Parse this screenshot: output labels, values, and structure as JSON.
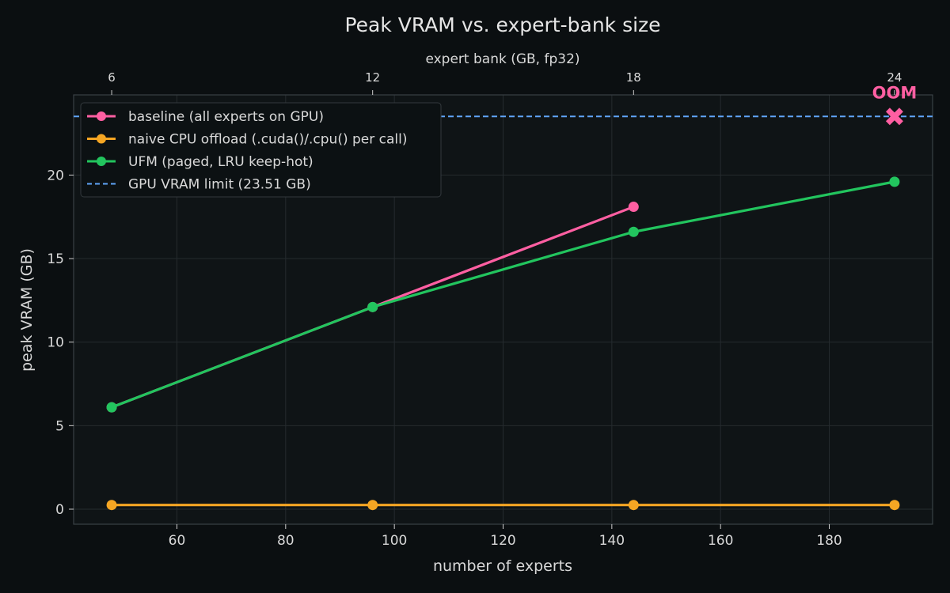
{
  "chart_data": {
    "type": "line",
    "title": "Peak VRAM vs. expert-bank size",
    "xlabel": "number of experts",
    "ylabel": "peak VRAM (GB)",
    "top_xlabel": "expert bank (GB, fp32)",
    "xlim": [
      41,
      199
    ],
    "ylim": [
      -0.9,
      24.8
    ],
    "xticks": [
      60,
      80,
      100,
      120,
      140,
      160,
      180
    ],
    "yticks": [
      0,
      5,
      10,
      15,
      20
    ],
    "top_ticks": [
      {
        "x": 48,
        "label": "6"
      },
      {
        "x": 96,
        "label": "12"
      },
      {
        "x": 144,
        "label": "18"
      },
      {
        "x": 192,
        "label": "24"
      }
    ],
    "grid": true,
    "legend_position": "top-left",
    "series": [
      {
        "name": "baseline (all experts on GPU)",
        "color": "#ff5fa2",
        "x": [
          48,
          96,
          144
        ],
        "y": [
          6.1,
          12.1,
          18.1
        ]
      },
      {
        "name": "naive CPU offload (.cuda()/.cpu() per call)",
        "color": "#f5a623",
        "x": [
          48,
          96,
          144,
          192
        ],
        "y": [
          0.25,
          0.25,
          0.25,
          0.25
        ]
      },
      {
        "name": "UFM (paged, LRU keep-hot)",
        "color": "#22c55e",
        "x": [
          48,
          96,
          144,
          192
        ],
        "y": [
          6.1,
          12.1,
          16.6,
          19.6
        ]
      }
    ],
    "hlines": [
      {
        "name": "GPU VRAM limit (23.51 GB)",
        "y": 23.51,
        "color": "#60a5fa",
        "style": "dashed"
      }
    ],
    "annotations": [
      {
        "text": "OOM",
        "x": 192,
        "y": 23.51,
        "marker": "X",
        "color": "#ff5fa2"
      }
    ]
  }
}
